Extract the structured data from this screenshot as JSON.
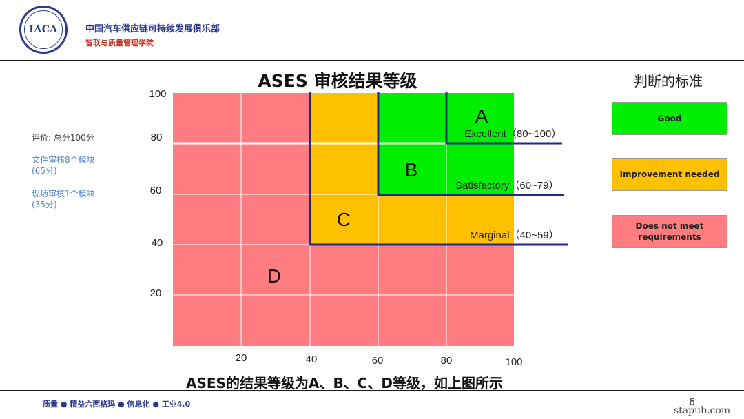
{
  "header": {
    "logo_text": "IACA",
    "org_line1": "中国汽车供应链可持续发展俱乐部",
    "org_line2": "智联与质量管理学院"
  },
  "title": "ASES 审核结果等级",
  "side_title": "判断的标准",
  "legend": [
    {
      "label": "Good",
      "color": "#00ee00"
    },
    {
      "label": "Improvement needed",
      "color": "#ffc000"
    },
    {
      "label": "Does not meet requirements",
      "color": "#ff7c80"
    }
  ],
  "notes": {
    "score": "评价: 总分100分",
    "doc_line1": "文件审核8个模块",
    "doc_line2": "(65分)",
    "site_line1": "现场审核1个模块",
    "site_line2": "(35分)"
  },
  "grade_chart": {
    "x_ticks": [
      "20",
      "40",
      "60",
      "80",
      "100"
    ],
    "y_ticks": [
      "100",
      "80",
      "60",
      "40",
      "20"
    ],
    "zones": [
      {
        "letter": "A",
        "label": "Excellent（80~100）",
        "color": "#00ee00"
      },
      {
        "letter": "B",
        "label": "Satisfactory（60~79）",
        "color": "#00ee00"
      },
      {
        "letter": "C",
        "label": "Marginal（40~59）",
        "color": "#ffc000"
      },
      {
        "letter": "D",
        "label": "",
        "color": "#ff7c80"
      }
    ]
  },
  "caption": "ASES的结果等级为A、B、C、D等级，如上图所示",
  "footer": "质量 ● 精益六西格玛 ● 信息化 ● 工业4.0",
  "page_number": "6",
  "watermark": "stapub.com"
}
